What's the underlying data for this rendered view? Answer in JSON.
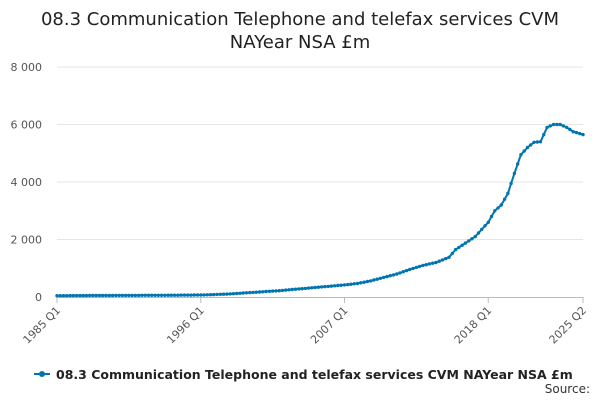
{
  "chart_data": {
    "type": "line",
    "title": [
      "08.3 Communication Telephone and telefax services CVM",
      "NAYear NSA £m"
    ],
    "xlabel": "",
    "ylabel": "",
    "ylim": [
      0,
      8000
    ],
    "y_ticks": [
      0,
      2000,
      4000,
      6000,
      8000
    ],
    "y_tick_labels": [
      "0",
      "2 000",
      "4 000",
      "6 000",
      "8 000"
    ],
    "x_tick_labels": [
      "1985 Q1",
      "1996 Q1",
      "2007 Q1",
      "2018 Q1",
      "2025 Q2"
    ],
    "x_start": "1985 Q1",
    "x_end": "2025 Q2",
    "grid": "horizontal",
    "legend_position": "bottom",
    "series": [
      {
        "name": "08.3 Communication Telephone and telefax services CVM NAYear NSA £m",
        "color": "#0075b0",
        "anchors": [
          [
            "1985 Q1",
            45
          ],
          [
            "1987 Q1",
            50
          ],
          [
            "1990 Q1",
            55
          ],
          [
            "1993 Q1",
            60
          ],
          [
            "1996 Q1",
            70
          ],
          [
            "1998 Q1",
            100
          ],
          [
            "2000 Q1",
            160
          ],
          [
            "2002 Q1",
            220
          ],
          [
            "2004 Q1",
            300
          ],
          [
            "2006 Q1",
            380
          ],
          [
            "2007 Q1",
            420
          ],
          [
            "2008 Q1",
            470
          ],
          [
            "2009 Q1",
            560
          ],
          [
            "2010 Q1",
            680
          ],
          [
            "2011 Q1",
            800
          ],
          [
            "2012 Q1",
            960
          ],
          [
            "2013 Q1",
            1100
          ],
          [
            "2014 Q1",
            1200
          ],
          [
            "2015 Q1",
            1380
          ],
          [
            "2015 Q3",
            1650
          ],
          [
            "2016 Q1",
            1800
          ],
          [
            "2017 Q1",
            2100
          ],
          [
            "2018 Q1",
            2600
          ],
          [
            "2018 Q3",
            3000
          ],
          [
            "2019 Q1",
            3200
          ],
          [
            "2019 Q3",
            3600
          ],
          [
            "2020 Q1",
            4300
          ],
          [
            "2020 Q3",
            4950
          ],
          [
            "2021 Q1",
            5200
          ],
          [
            "2021 Q3",
            5380
          ],
          [
            "2022 Q1",
            5400
          ],
          [
            "2022 Q3",
            5900
          ],
          [
            "2023 Q1",
            6000
          ],
          [
            "2023 Q3",
            6000
          ],
          [
            "2024 Q1",
            5900
          ],
          [
            "2024 Q3",
            5750
          ],
          [
            "2025 Q2",
            5650
          ]
        ]
      }
    ]
  },
  "legend": {
    "label": "08.3 Communication Telephone and telefax services CVM NAYear NSA £m"
  },
  "footer": {
    "source_label": "Source:"
  }
}
